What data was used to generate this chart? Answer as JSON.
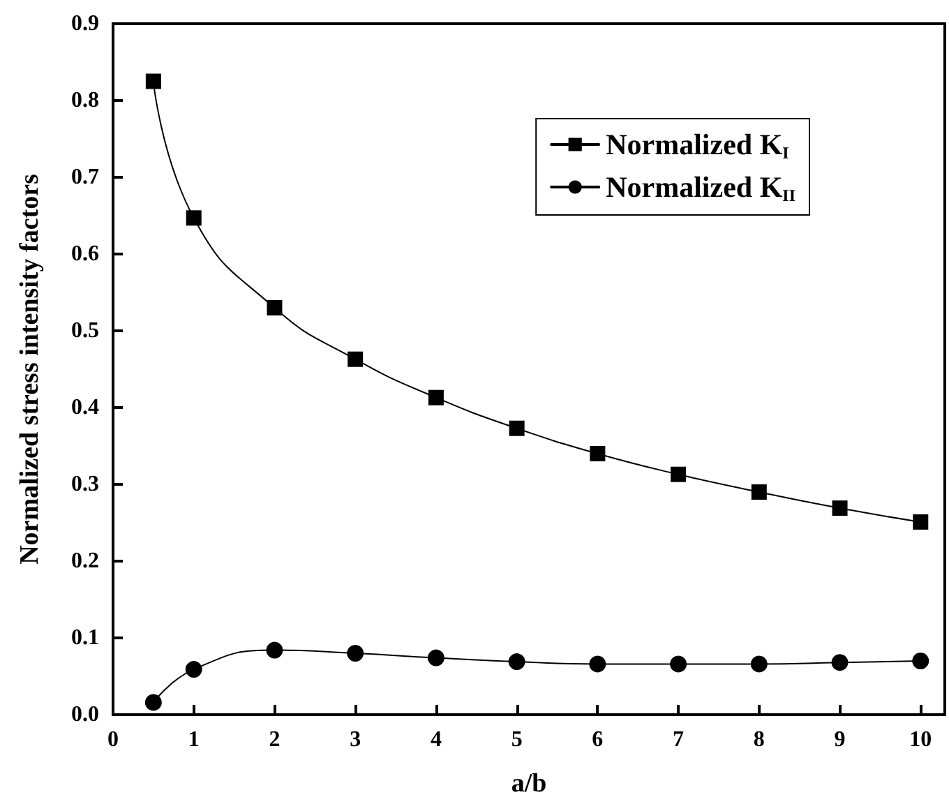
{
  "chart_data": {
    "type": "line",
    "xlabel": "a/b",
    "ylabel": "Normalized stress intensity factors",
    "x": [
      0.5,
      1,
      2,
      3,
      4,
      5,
      6,
      7,
      8,
      9,
      10
    ],
    "series": [
      {
        "name": "Normalized K$_{I}$",
        "color": "#000000",
        "marker": "square",
        "values": [
          0.825,
          0.647,
          0.53,
          0.463,
          0.413,
          0.373,
          0.34,
          0.313,
          0.29,
          0.269,
          0.251
        ]
      },
      {
        "name": "Normalized K$_{II}$",
        "color": "#000000",
        "marker": "circle",
        "values": [
          0.016,
          0.059,
          0.084,
          0.08,
          0.074,
          0.069,
          0.066,
          0.066,
          0.066,
          0.068,
          0.07
        ]
      }
    ],
    "xlim": [
      0,
      10.3
    ],
    "xticks": [
      0,
      1,
      2,
      3,
      4,
      5,
      6,
      7,
      8,
      9,
      10
    ],
    "ylim": [
      0,
      0.9
    ],
    "yticks": [
      {
        "value": 0,
        "label": "0.0"
      },
      0.1,
      0.2,
      0.3,
      0.4,
      0.5,
      0.6,
      0.7,
      0.8,
      0.9
    ],
    "grid": false,
    "legend": "top right",
    "line_style": "solid"
  }
}
